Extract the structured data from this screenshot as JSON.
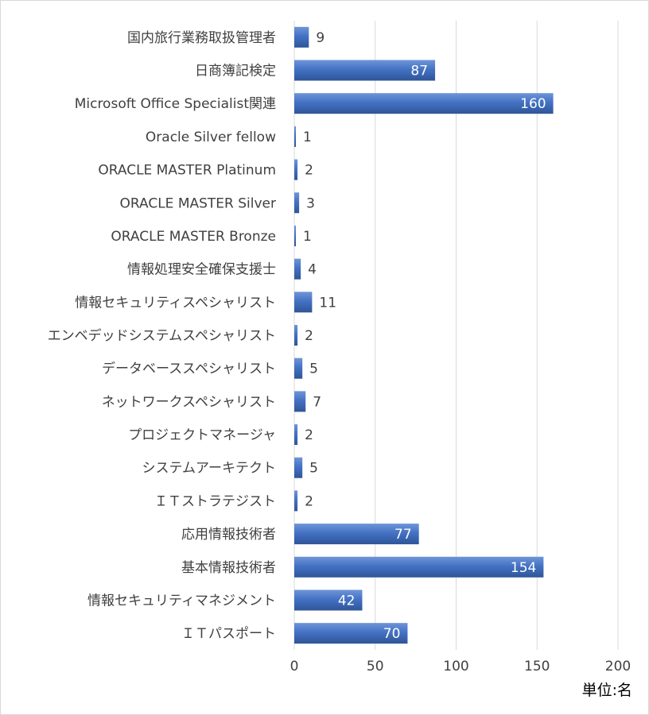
{
  "chart_data": {
    "type": "bar",
    "orientation": "horizontal",
    "categories": [
      "国内旅行業務取扱管理者",
      "日商簿記検定",
      "Microsoft Office Specialist関連",
      "Oracle Silver fellow",
      "ORACLE MASTER Platinum",
      "ORACLE MASTER Silver",
      "ORACLE MASTER Bronze",
      "情報処理安全確保支援士",
      "情報セキュリティスペシャリスト",
      "エンベデッドシステムスペシャリスト",
      "データベーススペシャリスト",
      "ネットワークスペシャリスト",
      "プロジェクトマネージャ",
      "システムアーキテクト",
      "ＩＴストラテジスト",
      "応用情報技術者",
      "基本情報技術者",
      "情報セキュリティマネジメント",
      "ＩＴパスポート"
    ],
    "values": [
      9,
      87,
      160,
      1,
      2,
      3,
      1,
      4,
      11,
      2,
      5,
      7,
      2,
      5,
      2,
      77,
      154,
      42,
      70
    ],
    "xlim": [
      0,
      200
    ],
    "xticks": [
      0,
      50,
      100,
      150,
      200
    ],
    "grid": "vertical",
    "legend": "none",
    "unit_label": "単位:名",
    "colors": {
      "bar": "#4472c4",
      "bar_dark": "#2f5597",
      "grid": "#d9d9d9",
      "label_inside": "#ffffff",
      "label_outside": "#404040"
    }
  }
}
